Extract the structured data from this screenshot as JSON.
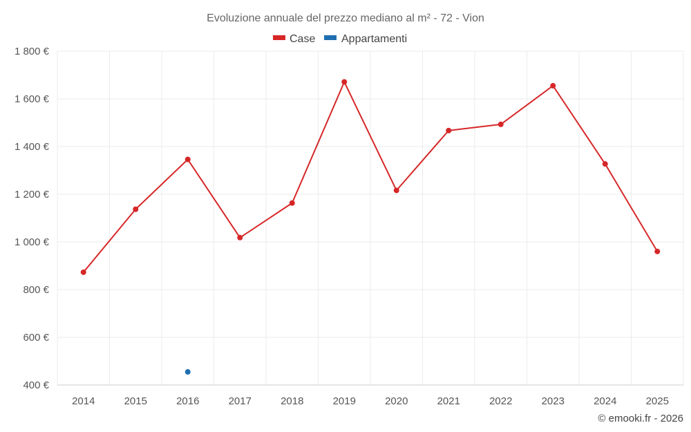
{
  "chart_data": {
    "type": "line",
    "title": "Evoluzione annuale del prezzo mediano al m² - 72 - Vion",
    "categories": [
      "2014",
      "2015",
      "2016",
      "2017",
      "2018",
      "2019",
      "2020",
      "2021",
      "2022",
      "2023",
      "2024",
      "2025"
    ],
    "series": [
      {
        "name": "Case",
        "color": "#d62728",
        "values": [
          873,
          1137,
          1346,
          1018,
          1163,
          1671,
          1216,
          1467,
          1493,
          1655,
          1327,
          960
        ]
      },
      {
        "name": "Appartamenti",
        "color": "#1f6fb0",
        "values": [
          null,
          null,
          455,
          null,
          null,
          null,
          null,
          null,
          null,
          null,
          null,
          null
        ]
      }
    ],
    "ylim": [
      400,
      1800
    ],
    "yticks": [
      400,
      600,
      800,
      1000,
      1200,
      1400,
      1600,
      1800
    ],
    "ytick_labels": [
      "400 €",
      "600 €",
      "800 €",
      "1 000 €",
      "1 200 €",
      "1 400 €",
      "1 600 €",
      "1 800 €"
    ],
    "xlabel": "",
    "ylabel": "",
    "grid": true,
    "legend_position": "top-center"
  },
  "credit": "© emooki.fr - 2026"
}
